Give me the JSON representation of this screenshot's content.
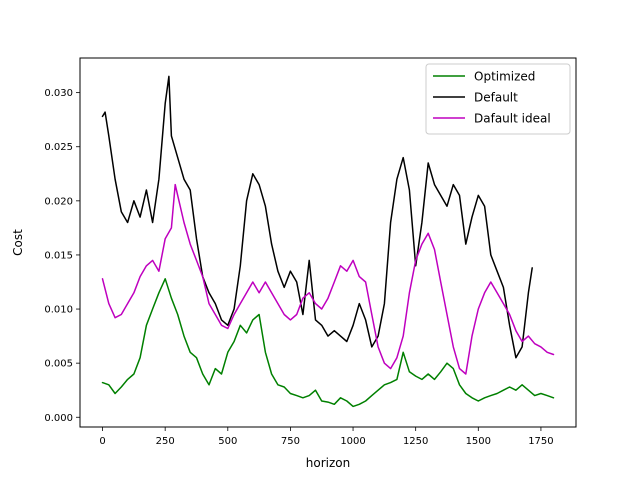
{
  "chart_data": {
    "type": "line",
    "title": "",
    "xlabel": "horizon",
    "ylabel": "Cost",
    "xlim": [
      -90,
      1890
    ],
    "ylim": [
      -0.0009,
      0.0332
    ],
    "xticks": [
      0,
      250,
      500,
      750,
      1000,
      1250,
      1500,
      1750
    ],
    "xtick_labels": [
      "0",
      "250",
      "500",
      "750",
      "1000",
      "1250",
      "1500",
      "1750"
    ],
    "yticks": [
      0.0,
      0.005,
      0.01,
      0.015,
      0.02,
      0.025,
      0.03
    ],
    "ytick_labels": [
      "0.000",
      "0.005",
      "0.010",
      "0.015",
      "0.020",
      "0.025",
      "0.030"
    ],
    "grid": false,
    "legend_position": "top-right",
    "series": [
      {
        "name": "Optimized",
        "color": "#008000",
        "x": [
          0,
          25,
          50,
          75,
          100,
          125,
          150,
          175,
          200,
          225,
          250,
          275,
          300,
          325,
          350,
          375,
          400,
          425,
          450,
          475,
          500,
          525,
          550,
          575,
          600,
          625,
          650,
          675,
          700,
          725,
          750,
          775,
          800,
          825,
          850,
          875,
          900,
          925,
          950,
          975,
          1000,
          1025,
          1050,
          1075,
          1100,
          1125,
          1150,
          1175,
          1200,
          1225,
          1250,
          1275,
          1300,
          1325,
          1350,
          1375,
          1400,
          1425,
          1450,
          1475,
          1500,
          1525,
          1550,
          1575,
          1600,
          1625,
          1650,
          1675,
          1700,
          1725,
          1750,
          1775,
          1800
        ],
        "y": [
          0.0032,
          0.003,
          0.0022,
          0.0028,
          0.0035,
          0.004,
          0.0055,
          0.0085,
          0.01,
          0.0115,
          0.0128,
          0.011,
          0.0095,
          0.0075,
          0.006,
          0.0055,
          0.004,
          0.003,
          0.0045,
          0.004,
          0.006,
          0.007,
          0.0085,
          0.0078,
          0.009,
          0.0095,
          0.006,
          0.004,
          0.003,
          0.0028,
          0.0022,
          0.002,
          0.0018,
          0.002,
          0.0025,
          0.0015,
          0.0014,
          0.0012,
          0.0018,
          0.0015,
          0.001,
          0.0012,
          0.0015,
          0.002,
          0.0025,
          0.003,
          0.0032,
          0.0035,
          0.006,
          0.0042,
          0.0038,
          0.0035,
          0.004,
          0.0035,
          0.0042,
          0.005,
          0.0045,
          0.003,
          0.0022,
          0.0018,
          0.0015,
          0.0018,
          0.002,
          0.0022,
          0.0025,
          0.0028,
          0.0025,
          0.003,
          0.0025,
          0.002,
          0.0022,
          0.002,
          0.0018
        ]
      },
      {
        "name": "Default",
        "color": "#000000",
        "x": [
          0,
          10,
          25,
          50,
          75,
          100,
          125,
          150,
          175,
          200,
          225,
          250,
          265,
          275,
          300,
          325,
          350,
          375,
          400,
          425,
          450,
          475,
          500,
          525,
          550,
          575,
          600,
          625,
          650,
          675,
          700,
          725,
          750,
          775,
          800,
          825,
          850,
          875,
          900,
          925,
          950,
          975,
          1000,
          1025,
          1050,
          1075,
          1100,
          1125,
          1150,
          1175,
          1200,
          1225,
          1250,
          1275,
          1300,
          1325,
          1350,
          1375,
          1400,
          1425,
          1450,
          1475,
          1500,
          1525,
          1550,
          1575,
          1600,
          1625,
          1650,
          1675,
          1700,
          1715
        ],
        "y": [
          0.0278,
          0.0282,
          0.026,
          0.022,
          0.019,
          0.018,
          0.02,
          0.0185,
          0.021,
          0.018,
          0.022,
          0.029,
          0.0315,
          0.026,
          0.024,
          0.022,
          0.021,
          0.0165,
          0.013,
          0.0115,
          0.0105,
          0.009,
          0.0085,
          0.01,
          0.014,
          0.02,
          0.0225,
          0.0215,
          0.0195,
          0.016,
          0.0135,
          0.012,
          0.0135,
          0.0125,
          0.0095,
          0.0145,
          0.009,
          0.0085,
          0.0075,
          0.008,
          0.0075,
          0.007,
          0.0085,
          0.0105,
          0.009,
          0.0065,
          0.0075,
          0.0105,
          0.018,
          0.022,
          0.024,
          0.021,
          0.014,
          0.018,
          0.0235,
          0.0215,
          0.0205,
          0.0195,
          0.0215,
          0.0205,
          0.016,
          0.0185,
          0.0205,
          0.0195,
          0.015,
          0.0135,
          0.012,
          0.0085,
          0.0055,
          0.0065,
          0.0115,
          0.0138
        ]
      },
      {
        "name": "Dafault ideal",
        "color": "#bf00bf",
        "x": [
          0,
          25,
          50,
          75,
          100,
          125,
          150,
          175,
          200,
          225,
          250,
          275,
          290,
          300,
          325,
          350,
          375,
          400,
          425,
          450,
          475,
          500,
          525,
          550,
          575,
          600,
          625,
          650,
          675,
          700,
          725,
          750,
          775,
          800,
          825,
          850,
          875,
          900,
          925,
          950,
          975,
          1000,
          1025,
          1050,
          1075,
          1100,
          1125,
          1150,
          1175,
          1200,
          1225,
          1250,
          1275,
          1300,
          1325,
          1350,
          1375,
          1400,
          1425,
          1450,
          1475,
          1500,
          1525,
          1550,
          1575,
          1600,
          1625,
          1650,
          1675,
          1700,
          1725,
          1750,
          1775,
          1800
        ],
        "y": [
          0.0128,
          0.0105,
          0.0092,
          0.0095,
          0.0105,
          0.0115,
          0.013,
          0.014,
          0.0145,
          0.0135,
          0.0165,
          0.0175,
          0.0215,
          0.0205,
          0.018,
          0.016,
          0.0145,
          0.013,
          0.0105,
          0.0095,
          0.0085,
          0.0082,
          0.0095,
          0.0105,
          0.0115,
          0.0125,
          0.0115,
          0.0125,
          0.0115,
          0.0105,
          0.0095,
          0.009,
          0.0095,
          0.011,
          0.0115,
          0.0105,
          0.01,
          0.011,
          0.0125,
          0.014,
          0.0135,
          0.0145,
          0.013,
          0.0125,
          0.0095,
          0.0065,
          0.005,
          0.0045,
          0.0055,
          0.0075,
          0.0115,
          0.0145,
          0.016,
          0.017,
          0.0155,
          0.0125,
          0.0095,
          0.0065,
          0.0045,
          0.004,
          0.0075,
          0.01,
          0.0115,
          0.0125,
          0.0115,
          0.0105,
          0.0095,
          0.008,
          0.007,
          0.0075,
          0.0068,
          0.0065,
          0.006,
          0.0058
        ]
      }
    ]
  }
}
